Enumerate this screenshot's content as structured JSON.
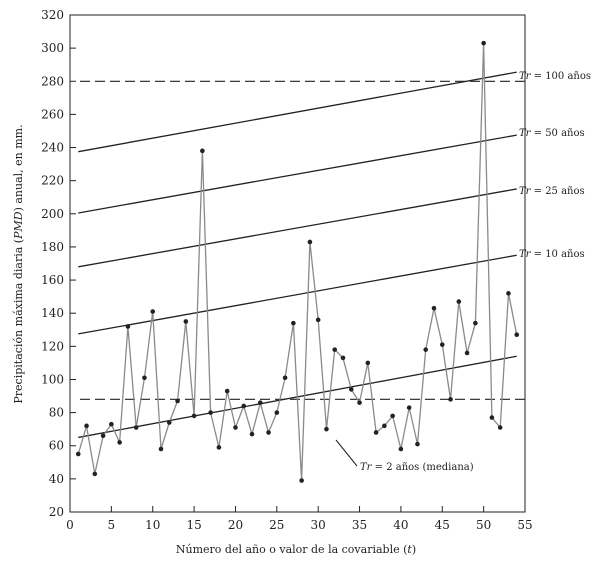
{
  "chart_data": {
    "type": "line",
    "xlabel_prefix": "Número del año o valor de la covariable (",
    "xlabel_var": "t",
    "xlabel_suffix": ")",
    "ylabel_prefix": "Precipitación máxima diaria (",
    "ylabel_var": "PMD",
    "ylabel_suffix": ") anual, en mm.",
    "xlim": [
      0,
      55
    ],
    "ylim": [
      20,
      320
    ],
    "xticks": [
      0,
      5,
      10,
      15,
      20,
      25,
      30,
      35,
      40,
      45,
      50,
      55
    ],
    "yticks": [
      20,
      40,
      60,
      80,
      100,
      120,
      140,
      160,
      180,
      200,
      220,
      240,
      260,
      280,
      300,
      320
    ],
    "series": [
      {
        "x": [
          1,
          2,
          3,
          4,
          5,
          6,
          7,
          8,
          9,
          10,
          11,
          12,
          13,
          14,
          15,
          16,
          17,
          18,
          19,
          20,
          21,
          22,
          23,
          24,
          25,
          26,
          27,
          28,
          29,
          30,
          31,
          32,
          33,
          34,
          35,
          36,
          37,
          38,
          39,
          40,
          41,
          42,
          43,
          44,
          45,
          46,
          47,
          48,
          49,
          50,
          51,
          52,
          53,
          54
        ],
        "values": [
          55,
          72,
          43,
          66,
          73,
          62,
          132,
          71,
          101,
          141,
          58,
          74,
          87,
          135,
          78,
          238,
          80,
          59,
          93,
          71,
          84,
          67,
          86,
          68,
          80,
          101,
          134,
          39,
          183,
          136,
          70,
          118,
          113,
          94,
          86,
          110,
          68,
          72,
          78,
          58,
          83,
          61,
          118,
          143,
          121,
          88,
          147,
          116,
          134,
          303,
          77,
          71,
          152,
          127
        ]
      }
    ],
    "trend_lines": [
      {
        "label_prefix": "Tr",
        "label_text": " = 100 años",
        "x": [
          1,
          54
        ],
        "y": [
          237.5,
          285.5
        ]
      },
      {
        "label_prefix": "Tr",
        "label_text": " = 50 años",
        "x": [
          1,
          54
        ],
        "y": [
          200.5,
          247.5
        ]
      },
      {
        "label_prefix": "Tr",
        "label_text": " = 25 años",
        "x": [
          1,
          54
        ],
        "y": [
          168,
          215
        ]
      },
      {
        "label_prefix": "Tr",
        "label_text": " = 10 años",
        "x": [
          1,
          54
        ],
        "y": [
          127.5,
          175
        ]
      },
      {
        "label_prefix": "Tr",
        "label_text": " = 2 años (mediana)",
        "x": [
          1,
          54
        ],
        "y": [
          65,
          114
        ]
      }
    ],
    "reference_lines": [
      {
        "y": 280,
        "style": "dashed"
      },
      {
        "y": 88,
        "style": "dashed"
      }
    ],
    "grid": false
  }
}
